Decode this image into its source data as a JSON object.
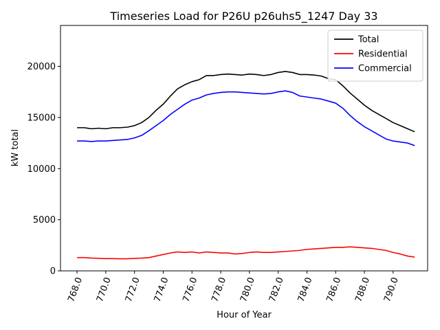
{
  "chart_data": {
    "type": "line",
    "title": "Timeseries Load for P26U p26uhs5_1247  Day 33",
    "xlabel": "Hour of Year",
    "ylabel": "kW total",
    "xlim": [
      766.85,
      792.4
    ],
    "ylim": [
      0,
      24000
    ],
    "xticks": [
      768,
      770,
      772,
      774,
      776,
      778,
      780,
      782,
      784,
      786,
      788,
      790
    ],
    "xtick_labels": [
      "768.0",
      "770.0",
      "772.0",
      "774.0",
      "776.0",
      "778.0",
      "780.0",
      "782.0",
      "784.0",
      "786.0",
      "788.0",
      "790.0"
    ],
    "yticks": [
      0,
      5000,
      10000,
      15000,
      20000
    ],
    "ytick_labels": [
      "0",
      "5000",
      "10000",
      "15000",
      "20000"
    ],
    "legend_position": "top-right",
    "x": [
      768.0,
      768.5,
      769.0,
      769.5,
      770.0,
      770.5,
      771.0,
      771.5,
      772.0,
      772.5,
      773.0,
      773.5,
      774.0,
      774.5,
      775.0,
      775.5,
      776.0,
      776.5,
      777.0,
      777.5,
      778.0,
      778.5,
      779.0,
      779.5,
      780.0,
      780.5,
      781.0,
      781.5,
      782.0,
      782.5,
      783.0,
      783.5,
      784.0,
      784.5,
      785.0,
      785.5,
      786.0,
      786.5,
      787.0,
      787.5,
      788.0,
      788.5,
      789.0,
      789.5,
      790.0,
      790.5,
      791.0,
      791.5
    ],
    "series": [
      {
        "name": "Total",
        "color": "#000000",
        "values": [
          14000,
          14000,
          13900,
          13950,
          13900,
          14000,
          14000,
          14050,
          14200,
          14500,
          15000,
          15700,
          16300,
          17100,
          17800,
          18200,
          18500,
          18700,
          19100,
          19100,
          19200,
          19250,
          19200,
          19150,
          19250,
          19200,
          19100,
          19200,
          19400,
          19500,
          19400,
          19200,
          19200,
          19150,
          19050,
          18800,
          18700,
          18100,
          17400,
          16800,
          16200,
          15700,
          15300,
          14900,
          14500,
          14200,
          13900,
          13600
        ]
      },
      {
        "name": "Residential",
        "color": "#ff0000",
        "values": [
          1300,
          1300,
          1250,
          1230,
          1200,
          1200,
          1180,
          1180,
          1220,
          1250,
          1300,
          1450,
          1600,
          1750,
          1850,
          1800,
          1850,
          1750,
          1850,
          1800,
          1750,
          1750,
          1650,
          1700,
          1800,
          1850,
          1800,
          1800,
          1850,
          1900,
          1950,
          2000,
          2100,
          2150,
          2200,
          2250,
          2300,
          2300,
          2350,
          2300,
          2250,
          2200,
          2100,
          2000,
          1800,
          1650,
          1450,
          1350
        ]
      },
      {
        "name": "Commercial",
        "color": "#0000ff",
        "values": [
          12700,
          12700,
          12650,
          12700,
          12700,
          12750,
          12800,
          12850,
          13000,
          13250,
          13700,
          14200,
          14700,
          15300,
          15800,
          16300,
          16700,
          16900,
          17200,
          17350,
          17450,
          17500,
          17500,
          17450,
          17400,
          17350,
          17300,
          17350,
          17500,
          17600,
          17450,
          17100,
          17000,
          16900,
          16800,
          16600,
          16400,
          15900,
          15200,
          14600,
          14100,
          13700,
          13300,
          12900,
          12700,
          12600,
          12500,
          12250
        ]
      }
    ]
  }
}
